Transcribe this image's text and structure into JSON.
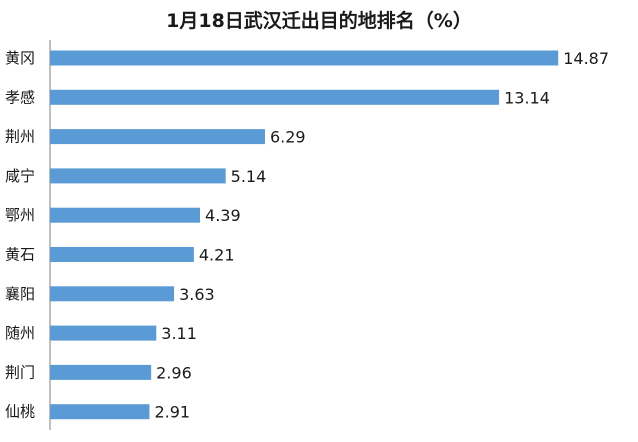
{
  "chart_data": {
    "type": "bar",
    "orientation": "horizontal",
    "title": "1月18日武汉迁出目的地排名（%）",
    "categories": [
      "黄冈",
      "孝感",
      "荆州",
      "咸宁",
      "鄂州",
      "黄石",
      "襄阳",
      "随州",
      "荆门",
      "仙桃"
    ],
    "values": [
      14.87,
      13.14,
      6.29,
      5.14,
      4.39,
      4.21,
      3.63,
      3.11,
      2.96,
      2.91
    ],
    "value_labels": [
      "14.87",
      "13.14",
      "6.29",
      "5.14",
      "4.39",
      "4.21",
      "3.63",
      "3.11",
      "2.96",
      "2.91"
    ],
    "xlim": [
      0,
      15.8
    ],
    "grid": false,
    "legend": "none",
    "bar_color": "#5b9bd5",
    "axis_color": "#7f7f7f"
  }
}
